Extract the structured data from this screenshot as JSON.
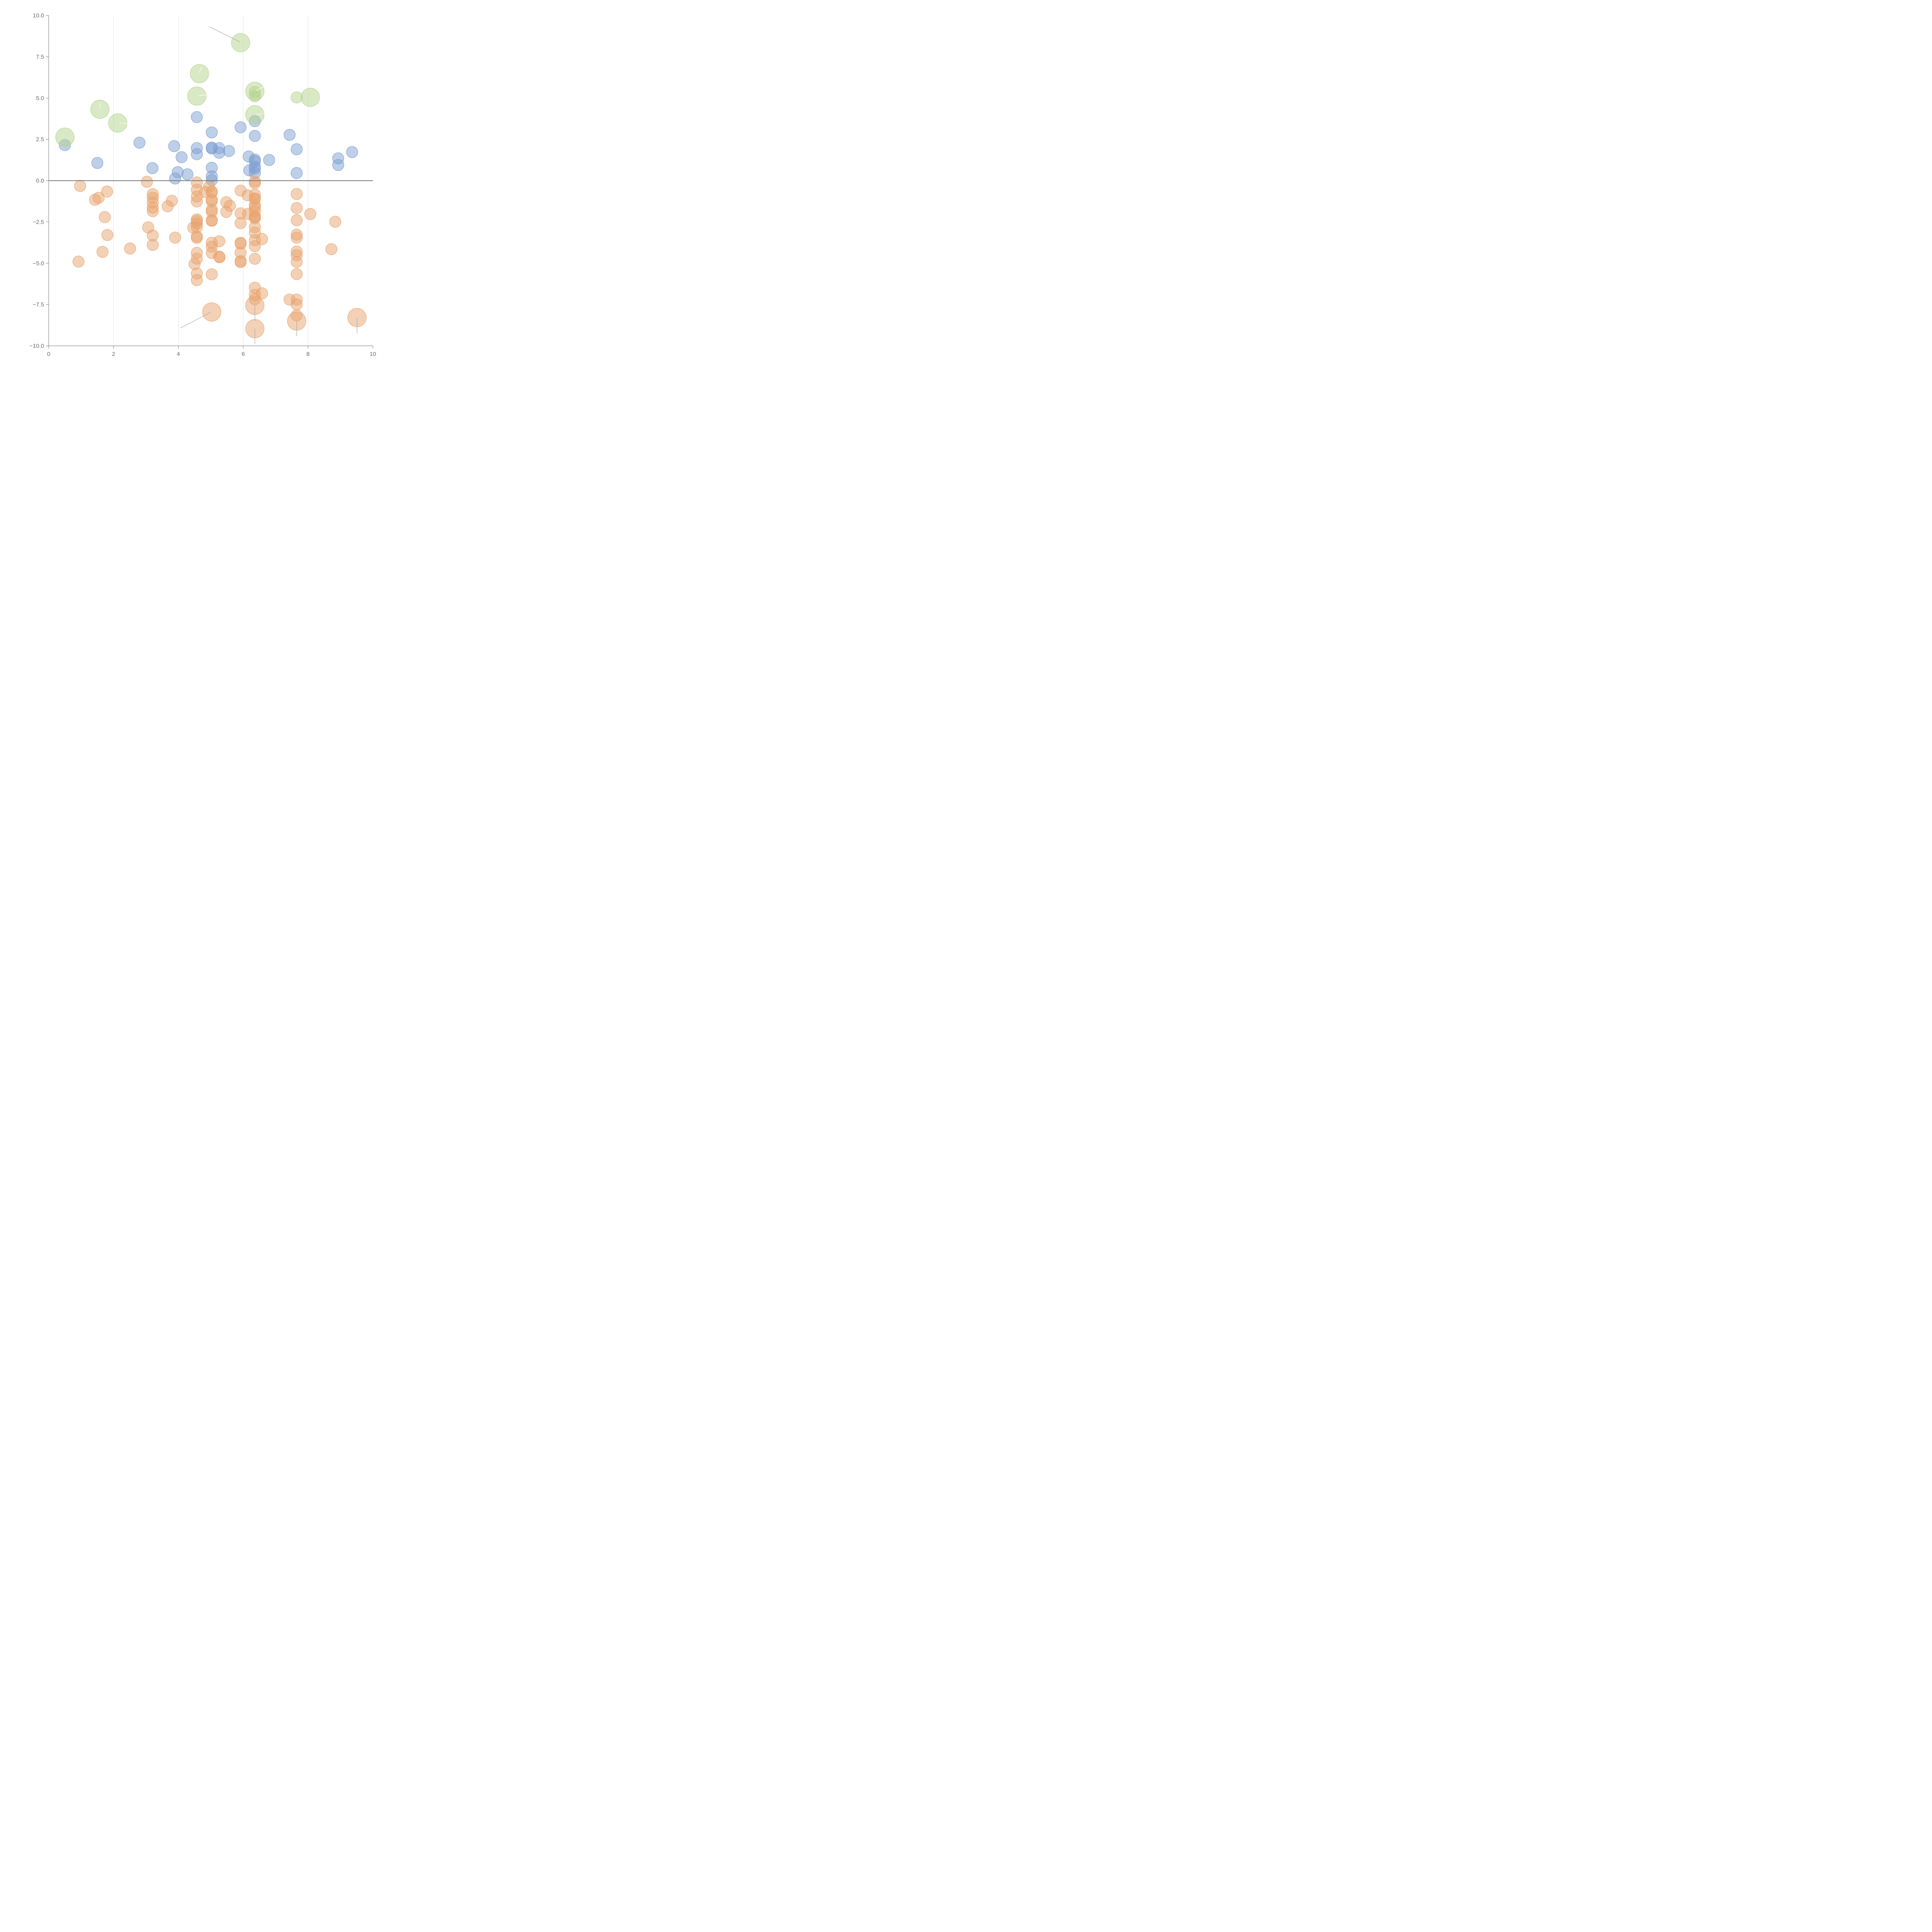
{
  "colors": {
    "blue": "#7d9fd1",
    "orange": "#e8a46e",
    "green": "#b3d48c",
    "leader_dark": "#aaaaaa",
    "leader_light": "#ffffff"
  },
  "chart_data": {
    "type": "scatter",
    "title": "",
    "xlabel": "",
    "ylabel": "",
    "xlim": [
      0,
      10
    ],
    "ylim": [
      -10,
      10
    ],
    "x_ticks": [
      0,
      2,
      4,
      6,
      8,
      10
    ],
    "y_ticks": [
      -10,
      -7.5,
      -5,
      -2.5,
      0,
      2.5,
      5,
      7.5,
      10
    ],
    "y_tick_labels": [
      "−10.0",
      "−7.5",
      "−5.0",
      "−2.5",
      "0.0",
      "2.5",
      "5.0",
      "7.5",
      "10.0"
    ],
    "vertical_grid_at": [
      2,
      4,
      6,
      8
    ],
    "zero_line": true,
    "marker_size_levels": {
      "small": 1,
      "medium": 1.6,
      "large": 2.6
    },
    "series": [
      {
        "name": "blue",
        "color_key": "blue",
        "size": "medium",
        "points": [
          [
            0.5,
            2.15
          ],
          [
            1.5,
            1.07
          ],
          [
            2.8,
            2.3
          ],
          [
            3.2,
            0.76
          ],
          [
            3.87,
            2.09
          ],
          [
            3.98,
            0.51
          ],
          [
            3.9,
            0.13
          ],
          [
            4.1,
            1.42
          ],
          [
            4.28,
            0.38
          ],
          [
            4.57,
            3.85
          ],
          [
            4.57,
            1.97
          ],
          [
            4.57,
            1.6
          ],
          [
            5.03,
            2.92
          ],
          [
            5.03,
            2.0
          ],
          [
            5.03,
            1.95
          ],
          [
            5.03,
            0.78
          ],
          [
            5.03,
            0.26
          ],
          [
            5.03,
            0.03
          ],
          [
            5.26,
            1.97
          ],
          [
            5.26,
            1.69
          ],
          [
            5.56,
            1.79
          ],
          [
            5.92,
            3.23
          ],
          [
            6.17,
            1.46
          ],
          [
            6.19,
            0.62
          ],
          [
            6.36,
            3.6
          ],
          [
            6.36,
            2.71
          ],
          [
            6.36,
            1.28
          ],
          [
            6.36,
            1.17
          ],
          [
            6.36,
            0.84
          ],
          [
            6.36,
            0.73
          ],
          [
            6.36,
            0.47
          ],
          [
            6.8,
            1.25
          ],
          [
            7.43,
            2.77
          ],
          [
            7.65,
            1.9
          ],
          [
            7.65,
            0.46
          ],
          [
            8.93,
            1.35
          ],
          [
            8.93,
            0.95
          ],
          [
            9.36,
            1.73
          ]
        ]
      },
      {
        "name": "orange",
        "color_key": "orange",
        "size": "medium",
        "points": [
          [
            0.97,
            -0.32
          ],
          [
            0.92,
            -4.9
          ],
          [
            1.43,
            -1.16
          ],
          [
            1.54,
            -1.04
          ],
          [
            1.66,
            -4.31
          ],
          [
            1.73,
            -2.21
          ],
          [
            1.8,
            -0.66
          ],
          [
            1.81,
            -3.29
          ],
          [
            2.51,
            -4.11
          ],
          [
            3.03,
            -0.07
          ],
          [
            3.07,
            -2.83
          ],
          [
            3.21,
            -0.82
          ],
          [
            3.21,
            -1.03
          ],
          [
            3.21,
            -1.32
          ],
          [
            3.21,
            -1.63
          ],
          [
            3.21,
            -1.85
          ],
          [
            3.21,
            -3.32
          ],
          [
            3.21,
            -3.89
          ],
          [
            3.67,
            -1.55
          ],
          [
            3.8,
            -1.22
          ],
          [
            3.9,
            -3.45
          ],
          [
            4.46,
            -2.85
          ],
          [
            4.5,
            -5.05
          ],
          [
            4.57,
            -0.11
          ],
          [
            4.57,
            -0.55
          ],
          [
            4.57,
            -0.96
          ],
          [
            4.57,
            -1.26
          ],
          [
            4.57,
            -2.35
          ],
          [
            4.57,
            -2.45
          ],
          [
            4.57,
            -2.6
          ],
          [
            4.57,
            -2.82
          ],
          [
            4.57,
            -3.38
          ],
          [
            4.57,
            -3.46
          ],
          [
            4.57,
            -4.37
          ],
          [
            4.57,
            -4.72
          ],
          [
            4.57,
            -5.62
          ],
          [
            4.57,
            -6.02
          ],
          [
            4.82,
            -0.68
          ],
          [
            4.95,
            -0.37
          ],
          [
            5.03,
            -0.66
          ],
          [
            5.03,
            -0.71
          ],
          [
            5.03,
            -1.16
          ],
          [
            5.03,
            -1.24
          ],
          [
            5.03,
            -1.76
          ],
          [
            5.03,
            -1.88
          ],
          [
            5.03,
            -2.39
          ],
          [
            5.03,
            -2.43
          ],
          [
            5.03,
            -3.76
          ],
          [
            5.03,
            -4.0
          ],
          [
            5.03,
            -4.38
          ],
          [
            5.03,
            -5.67
          ],
          [
            5.26,
            -3.67
          ],
          [
            5.26,
            -4.6
          ],
          [
            5.27,
            -4.64
          ],
          [
            5.48,
            -1.31
          ],
          [
            5.48,
            -1.89
          ],
          [
            5.59,
            -1.52
          ],
          [
            5.92,
            -0.6
          ],
          [
            5.92,
            -1.98
          ],
          [
            5.92,
            -2.57
          ],
          [
            5.92,
            -3.76
          ],
          [
            5.92,
            -3.82
          ],
          [
            5.92,
            -4.36
          ],
          [
            5.92,
            -4.87
          ],
          [
            5.92,
            -4.93
          ],
          [
            6.14,
            -0.89
          ],
          [
            6.15,
            -2.01
          ],
          [
            6.36,
            -0.05
          ],
          [
            6.36,
            -0.16
          ],
          [
            6.36,
            -0.85
          ],
          [
            6.36,
            -1.08
          ],
          [
            6.36,
            -1.1
          ],
          [
            6.36,
            -1.47
          ],
          [
            6.36,
            -1.61
          ],
          [
            6.36,
            -1.84
          ],
          [
            6.36,
            -2.15
          ],
          [
            6.36,
            -2.2
          ],
          [
            6.36,
            -2.27
          ],
          [
            6.36,
            -2.81
          ],
          [
            6.36,
            -3.15
          ],
          [
            6.36,
            -3.6
          ],
          [
            6.36,
            -3.96
          ],
          [
            6.36,
            -4.73
          ],
          [
            6.36,
            -6.48
          ],
          [
            6.36,
            -6.92
          ],
          [
            6.36,
            -7.18
          ],
          [
            6.58,
            -3.54
          ],
          [
            6.58,
            -6.82
          ],
          [
            7.43,
            -7.2
          ],
          [
            7.65,
            -0.81
          ],
          [
            7.65,
            -1.66
          ],
          [
            7.65,
            -2.4
          ],
          [
            7.65,
            -3.27
          ],
          [
            7.65,
            -3.45
          ],
          [
            7.65,
            -4.29
          ],
          [
            7.65,
            -4.51
          ],
          [
            7.65,
            -4.92
          ],
          [
            7.65,
            -5.66
          ],
          [
            7.65,
            -7.2
          ],
          [
            7.65,
            -7.5
          ],
          [
            7.65,
            -8.16
          ],
          [
            8.07,
            -2.02
          ],
          [
            8.72,
            -4.15
          ],
          [
            8.84,
            -2.49
          ]
        ]
      },
      {
        "name": "orange-large",
        "color_key": "orange",
        "size": "large",
        "points": [
          [
            5.03,
            -7.95
          ],
          [
            6.36,
            -7.55
          ],
          [
            6.36,
            -8.96
          ],
          [
            7.65,
            -8.5
          ],
          [
            9.51,
            -8.29
          ]
        ]
      },
      {
        "name": "green",
        "color_key": "green",
        "size": "large",
        "points": [
          [
            0.5,
            2.63
          ],
          [
            1.58,
            4.32
          ],
          [
            2.13,
            3.49
          ],
          [
            4.57,
            5.12
          ],
          [
            4.65,
            6.48
          ],
          [
            5.92,
            8.35
          ],
          [
            6.36,
            5.41
          ],
          [
            6.36,
            3.99
          ],
          [
            8.07,
            5.04
          ]
        ]
      },
      {
        "name": "green-small",
        "color_key": "green",
        "size": "medium",
        "points": [
          [
            6.36,
            5.36
          ],
          [
            6.36,
            5.11
          ],
          [
            7.65,
            5.04
          ]
        ]
      }
    ],
    "leader_lines": [
      {
        "from": [
          4.95,
          9.32
        ],
        "to": [
          5.9,
          8.4
        ],
        "color_key": "leader_dark"
      },
      {
        "from": [
          4.07,
          -8.92
        ],
        "to": [
          5.0,
          -7.97
        ],
        "color_key": "leader_dark"
      },
      {
        "from": [
          6.36,
          -7.55
        ],
        "to": [
          6.36,
          -8.5
        ],
        "color_key": "leader_dark"
      },
      {
        "from": [
          6.36,
          -8.96
        ],
        "to": [
          6.36,
          -9.9
        ],
        "color_key": "leader_dark"
      },
      {
        "from": [
          7.65,
          -8.5
        ],
        "to": [
          7.65,
          -9.42
        ],
        "color_key": "leader_dark"
      },
      {
        "from": [
          9.51,
          -8.29
        ],
        "to": [
          9.51,
          -9.24
        ],
        "color_key": "leader_dark"
      },
      {
        "from": [
          4.65,
          6.55
        ],
        "to": [
          4.72,
          6.88
        ],
        "color_key": "leader_light"
      },
      {
        "from": [
          4.62,
          5.14
        ],
        "to": [
          4.95,
          5.22
        ],
        "color_key": "leader_light"
      },
      {
        "from": [
          1.58,
          4.38
        ],
        "to": [
          1.58,
          4.75
        ],
        "color_key": "leader_light"
      },
      {
        "from": [
          2.17,
          3.49
        ],
        "to": [
          2.45,
          3.45
        ],
        "color_key": "leader_light"
      },
      {
        "from": [
          6.4,
          5.45
        ],
        "to": [
          6.62,
          5.68
        ],
        "color_key": "leader_light"
      },
      {
        "from": [
          6.4,
          3.99
        ],
        "to": [
          6.7,
          4.08
        ],
        "color_key": "leader_light"
      }
    ]
  }
}
